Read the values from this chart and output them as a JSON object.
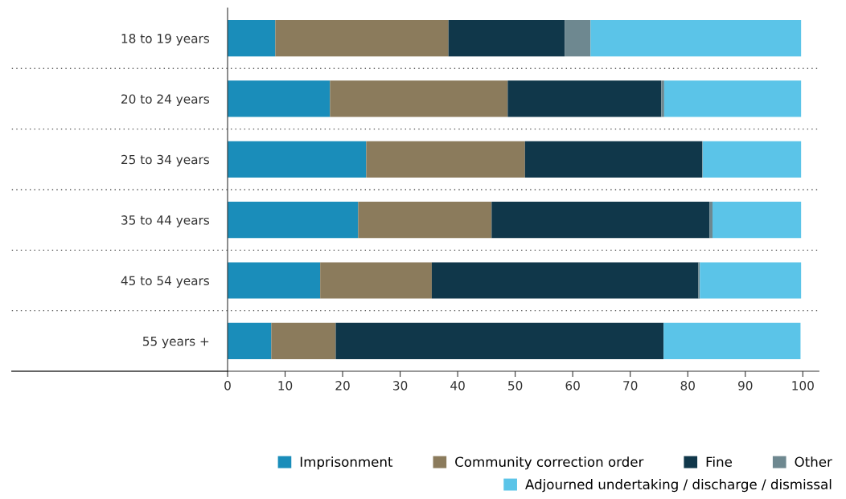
{
  "chart_data": {
    "type": "bar",
    "orientation": "horizontal",
    "stacked": true,
    "categories": [
      "18 to 19 years",
      "20 to 24 years",
      "25 to 34 years",
      "35 to 44 years",
      "45 to 54 years",
      "55 years +"
    ],
    "series": [
      {
        "name": "Imprisonment",
        "color": "#1a8dba",
        "values": [
          8.3,
          17.8,
          24.1,
          22.7,
          16.1,
          7.6
        ]
      },
      {
        "name": "Community correction order",
        "color": "#8b7b5c",
        "values": [
          30.1,
          30.9,
          27.6,
          23.2,
          19.4,
          11.2
        ]
      },
      {
        "name": "Fine",
        "color": "#10374a",
        "values": [
          20.2,
          26.7,
          30.8,
          37.9,
          46.3,
          57.0
        ]
      },
      {
        "name": "Other",
        "color": "#6e8890",
        "values": [
          4.5,
          0.5,
          0.1,
          0.5,
          0.3,
          0
        ]
      },
      {
        "name": "Adjourned undertaking / discharge / dismissal",
        "color": "#5bc4e8",
        "values": [
          36.6,
          23.8,
          17.1,
          15.4,
          17.6,
          23.8
        ]
      }
    ],
    "xlim": [
      0,
      102.8
    ],
    "xticks": [
      0,
      10,
      20,
      30,
      40,
      50,
      60,
      70,
      80,
      90,
      100
    ],
    "grid": false,
    "legend": "bottom right"
  }
}
